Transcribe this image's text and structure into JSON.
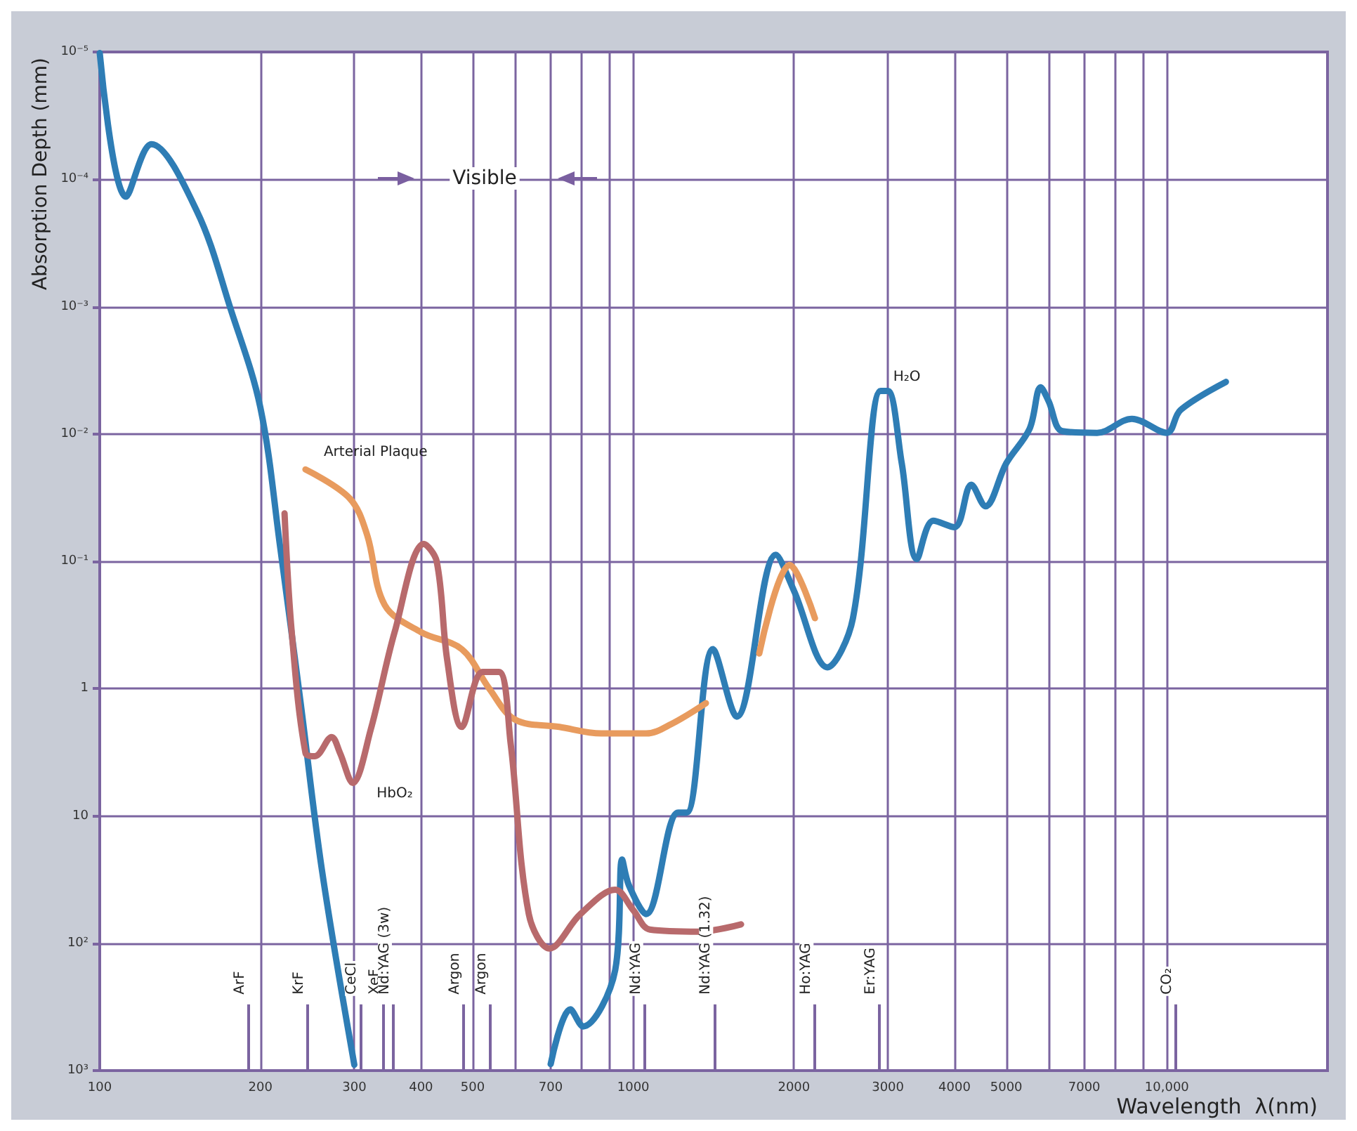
{
  "chart_data": {
    "type": "line",
    "xlabel": "Wavelength  λ(nm)",
    "ylabel": "Absorption Depth (mm)",
    "log": "xy",
    "grid": true,
    "legend": false,
    "marker": "none",
    "line_style": "solid",
    "xlim": [
      100,
      20000
    ],
    "ylim": [
      1000,
      1e-05
    ],
    "xticks": [
      100,
      200,
      300,
      400,
      500,
      {
        "value": 600,
        "label": null
      },
      700,
      {
        "value": 800,
        "label": null
      },
      {
        "value": 900,
        "label": null
      },
      1000,
      2000,
      3000,
      4000,
      5000,
      {
        "value": 6000,
        "label": null
      },
      7000,
      {
        "value": 8000,
        "label": null
      },
      {
        "value": 9000,
        "label": null
      },
      {
        "value": 10000,
        "label": "10,000"
      }
    ],
    "yticks": [
      {
        "value": 1e-05,
        "label": "10⁻⁵"
      },
      {
        "value": 0.0001,
        "label": "10⁻⁴"
      },
      {
        "value": 0.001,
        "label": "10⁻³"
      },
      {
        "value": 0.01,
        "label": "10⁻²"
      },
      {
        "value": 0.1,
        "label": "10⁻¹"
      },
      1,
      10,
      {
        "value": 100,
        "label": "10²"
      },
      {
        "value": 1000,
        "label": "10³"
      }
    ],
    "series": [
      {
        "name": "H₂O",
        "color": "#2e7db5",
        "x": [
          100,
          112,
          125,
          152,
          176,
          200,
          218,
          238,
          261,
          300,
          500,
          700,
          762,
          805,
          925,
          953,
          981,
          1057,
          1213,
          1260,
          1410,
          1563,
          1850,
          2000,
          2311,
          2580,
          2907,
          3000,
          3185,
          3400,
          3650,
          4000,
          4300,
          4570,
          5000,
          5530,
          5800,
          6000,
          6370,
          7400,
          8600,
          10000,
          10600,
          12900
        ],
        "values": [
          1.02e-05,
          0.000137,
          5.3e-05,
          0.000177,
          0.00105,
          0.0062,
          0.079,
          1.3,
          27,
          900,
          null,
          890,
          330,
          450,
          162,
          22,
          35,
          59,
          9.4,
          9.4,
          0.49,
          1.66,
          0.089,
          0.17,
          0.68,
          0.28,
          0.0046,
          0.0046,
          0.017,
          0.096,
          0.048,
          0.054,
          0.025,
          0.037,
          0.017,
          0.0091,
          0.0043,
          0.0055,
          0.0095,
          0.0098,
          0.0076,
          0.0098,
          0.0065,
          0.0039
        ]
      },
      {
        "name": "Arterial Plaque",
        "color": "#e89b5e",
        "x": [
          243,
          294,
          317,
          342,
          400,
          477,
          537,
          600,
          727,
          871,
          1057,
          1178,
          1368,
          1500,
          1722,
          1965,
          2190
        ],
        "values": [
          0.019,
          0.032,
          0.062,
          0.22,
          0.36,
          0.49,
          1.0,
          1.75,
          2.0,
          2.25,
          2.25,
          1.9,
          1.3,
          null,
          0.53,
          0.107,
          0.28
        ]
      },
      {
        "name": "HbO₂",
        "color": "#b86a6c",
        "x": [
          222,
          229,
          243,
          253,
          272,
          282,
          298,
          322,
          357,
          405,
          428,
          448,
          477,
          522,
          560,
          589,
          637,
          697,
          796,
          925,
          1000,
          1074,
          1327,
          1592
        ],
        "values": [
          0.042,
          0.36,
          3.2,
          3.4,
          2.4,
          3.2,
          5.5,
          2.1,
          0.36,
          0.073,
          0.1,
          0.6,
          2.0,
          0.74,
          0.74,
          2.7,
          59,
          110,
          59,
          38,
          55,
          78,
          81,
          71
        ]
      }
    ],
    "ref_lines": [
      {
        "axis": "x",
        "value": 190,
        "label": "ArF"
      },
      {
        "axis": "x",
        "value": 245,
        "label": "KrF"
      },
      {
        "axis": "x",
        "value": 308,
        "label": "CeCl"
      },
      {
        "axis": "x",
        "value": 340,
        "label": "XeF"
      },
      {
        "axis": "x",
        "value": 355,
        "label": "Nd:YAG (3w)"
      },
      {
        "axis": "x",
        "value": 480,
        "label": "Argon"
      },
      {
        "axis": "x",
        "value": 540,
        "label": "Argon"
      },
      {
        "axis": "x",
        "value": 1050,
        "label": "Nd:YAG"
      },
      {
        "axis": "x",
        "value": 1420,
        "label": "Nd:YAG (1.32)"
      },
      {
        "axis": "x",
        "value": 2190,
        "label": "Ho:YAG"
      },
      {
        "axis": "x",
        "value": 2890,
        "label": "Er:YAG"
      },
      {
        "axis": "x",
        "value": 10400,
        "label": "CO₂"
      }
    ],
    "annotations": [
      "Visible"
    ]
  }
}
